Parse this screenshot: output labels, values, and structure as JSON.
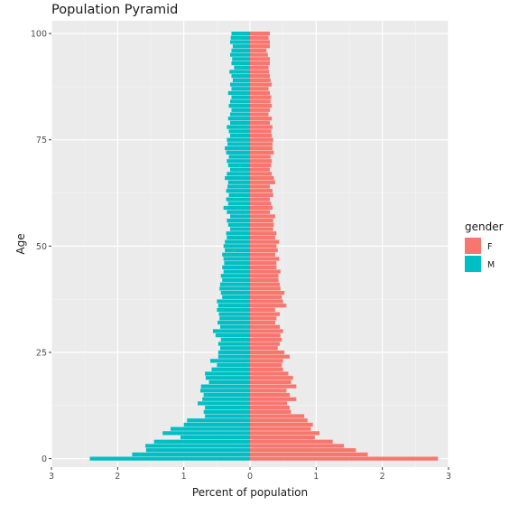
{
  "chart_data": {
    "type": "bar",
    "orientation": "horizontal",
    "title": "Population Pyramid",
    "xlabel": "Percent of population",
    "ylabel": "Age",
    "xlim": [
      -3.0,
      3.0
    ],
    "ylim": [
      -2,
      103
    ],
    "x_ticks": [
      -3,
      -2,
      -1,
      0,
      1,
      2,
      3
    ],
    "x_tick_labels": [
      "3",
      "2",
      "1",
      "0",
      "1",
      "2",
      "3"
    ],
    "y_ticks": [
      0,
      25,
      50,
      75,
      100
    ],
    "y_tick_labels": [
      "0",
      "25",
      "50",
      "75",
      "100"
    ],
    "grid": true,
    "legend": {
      "title": "gender",
      "position": "right"
    },
    "age": [
      0,
      1,
      2,
      3,
      4,
      5,
      6,
      7,
      8,
      9,
      10,
      11,
      12,
      13,
      14,
      15,
      16,
      17,
      18,
      19,
      20,
      21,
      22,
      23,
      24,
      25,
      26,
      27,
      28,
      29,
      30,
      31,
      32,
      33,
      34,
      35,
      36,
      37,
      38,
      39,
      40,
      41,
      42,
      43,
      44,
      45,
      46,
      47,
      48,
      49,
      50,
      51,
      52,
      53,
      54,
      55,
      56,
      57,
      58,
      59,
      60,
      61,
      62,
      63,
      64,
      65,
      66,
      67,
      68,
      69,
      70,
      71,
      72,
      73,
      74,
      75,
      76,
      77,
      78,
      79,
      80,
      81,
      82,
      83,
      84,
      85,
      86,
      87,
      88,
      89,
      90,
      91,
      92,
      93,
      94,
      95,
      96,
      97,
      98,
      99,
      100
    ],
    "series": [
      {
        "name": "F",
        "color": "#F8766D",
        "values": [
          2.84,
          1.78,
          1.6,
          1.42,
          1.25,
          0.98,
          1.05,
          0.92,
          0.95,
          0.87,
          0.82,
          0.62,
          0.6,
          0.56,
          0.7,
          0.6,
          0.55,
          0.7,
          0.62,
          0.65,
          0.58,
          0.5,
          0.48,
          0.5,
          0.6,
          0.52,
          0.42,
          0.45,
          0.48,
          0.46,
          0.5,
          0.45,
          0.38,
          0.4,
          0.45,
          0.38,
          0.55,
          0.5,
          0.48,
          0.52,
          0.46,
          0.45,
          0.43,
          0.43,
          0.46,
          0.4,
          0.4,
          0.44,
          0.38,
          0.42,
          0.4,
          0.44,
          0.38,
          0.4,
          0.35,
          0.36,
          0.35,
          0.38,
          0.3,
          0.34,
          0.32,
          0.3,
          0.35,
          0.34,
          0.3,
          0.38,
          0.36,
          0.33,
          0.3,
          0.32,
          0.33,
          0.31,
          0.36,
          0.34,
          0.34,
          0.35,
          0.33,
          0.32,
          0.34,
          0.3,
          0.33,
          0.28,
          0.3,
          0.33,
          0.31,
          0.32,
          0.3,
          0.28,
          0.33,
          0.31,
          0.3,
          0.29,
          0.28,
          0.3,
          0.3,
          0.27,
          0.25,
          0.3,
          0.3,
          0.28,
          0.3
        ]
      },
      {
        "name": "M",
        "color": "#00BFC4",
        "values": [
          2.42,
          1.78,
          1.57,
          1.58,
          1.45,
          1.05,
          1.32,
          1.2,
          1.0,
          0.95,
          0.68,
          0.7,
          0.68,
          0.79,
          0.72,
          0.7,
          0.75,
          0.74,
          0.62,
          0.67,
          0.68,
          0.58,
          0.5,
          0.6,
          0.48,
          0.48,
          0.45,
          0.48,
          0.44,
          0.52,
          0.56,
          0.45,
          0.49,
          0.46,
          0.47,
          0.5,
          0.48,
          0.5,
          0.42,
          0.44,
          0.46,
          0.45,
          0.42,
          0.44,
          0.4,
          0.42,
          0.39,
          0.4,
          0.42,
          0.38,
          0.4,
          0.38,
          0.35,
          0.36,
          0.3,
          0.33,
          0.35,
          0.3,
          0.35,
          0.4,
          0.33,
          0.36,
          0.32,
          0.36,
          0.34,
          0.33,
          0.38,
          0.35,
          0.3,
          0.33,
          0.35,
          0.32,
          0.36,
          0.38,
          0.34,
          0.35,
          0.3,
          0.32,
          0.35,
          0.3,
          0.33,
          0.3,
          0.28,
          0.32,
          0.3,
          0.28,
          0.33,
          0.28,
          0.3,
          0.26,
          0.28,
          0.31,
          0.24,
          0.28,
          0.27,
          0.3,
          0.28,
          0.26,
          0.3,
          0.29,
          0.28
        ]
      }
    ]
  }
}
